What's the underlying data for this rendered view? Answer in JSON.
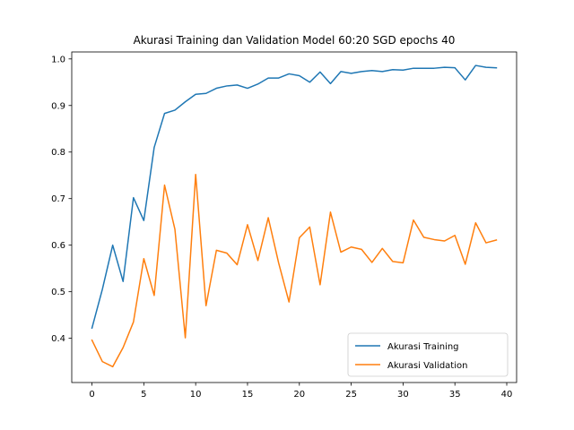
{
  "chart_data": {
    "type": "line",
    "title": "Akurasi Training dan Validation Model 60:20 SGD epochs 40",
    "xlabel": "",
    "ylabel": "",
    "xlim": [
      -1.95,
      40.95
    ],
    "ylim": [
      0.305,
      1.015
    ],
    "xticks": [
      0,
      5,
      10,
      15,
      20,
      25,
      30,
      35,
      40
    ],
    "yticks": [
      0.4,
      0.5,
      0.6,
      0.7,
      0.8,
      0.9,
      1.0
    ],
    "grid": false,
    "legend_position": "lower-right",
    "x": [
      0,
      1,
      2,
      3,
      4,
      5,
      6,
      7,
      8,
      9,
      10,
      11,
      12,
      13,
      14,
      15,
      16,
      17,
      18,
      19,
      20,
      21,
      22,
      23,
      24,
      25,
      26,
      27,
      28,
      29,
      30,
      31,
      32,
      33,
      34,
      35,
      36,
      37,
      38,
      39
    ],
    "series": [
      {
        "name": "Akurasi Training",
        "color": "#1f77b4",
        "values": [
          0.422,
          0.505,
          0.6,
          0.522,
          0.702,
          0.653,
          0.81,
          0.883,
          0.89,
          0.908,
          0.924,
          0.926,
          0.937,
          0.942,
          0.944,
          0.937,
          0.946,
          0.959,
          0.959,
          0.968,
          0.964,
          0.95,
          0.972,
          0.947,
          0.973,
          0.969,
          0.973,
          0.975,
          0.973,
          0.977,
          0.976,
          0.98,
          0.98,
          0.98,
          0.982,
          0.981,
          0.955,
          0.986,
          0.982,
          0.981
        ]
      },
      {
        "name": "Akurasi Validation",
        "color": "#ff7f0e",
        "values": [
          0.396,
          0.35,
          0.339,
          0.38,
          0.435,
          0.571,
          0.492,
          0.729,
          0.634,
          0.401,
          0.752,
          0.47,
          0.589,
          0.583,
          0.558,
          0.644,
          0.567,
          0.659,
          0.562,
          0.478,
          0.616,
          0.639,
          0.515,
          0.671,
          0.585,
          0.596,
          0.591,
          0.563,
          0.593,
          0.565,
          0.562,
          0.654,
          0.617,
          0.612,
          0.609,
          0.621,
          0.559,
          0.648,
          0.605,
          0.611
        ]
      }
    ]
  }
}
